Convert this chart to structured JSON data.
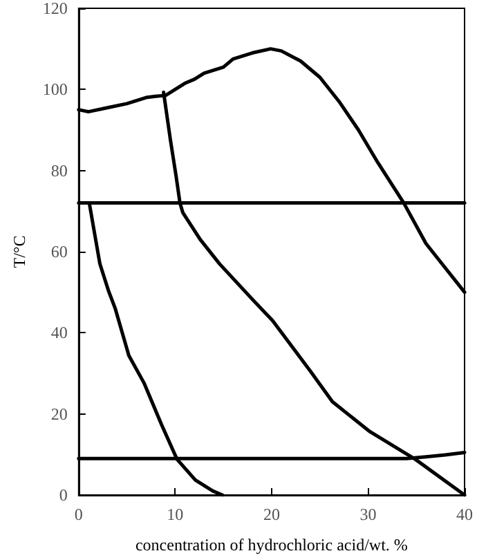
{
  "chart_data": {
    "type": "line",
    "xlabel": "concentration of hydrochloric acid/wt. %",
    "ylabel": "T/°C",
    "xlim": [
      0,
      40
    ],
    "xticks": [
      0,
      10,
      20,
      30,
      40
    ],
    "ylim": [
      0,
      120
    ],
    "yticks": [
      0,
      20,
      40,
      60,
      80,
      100,
      120
    ],
    "marker": "none",
    "line_style": "solid",
    "series": [
      {
        "color": "#000000",
        "x": [
          0,
          1,
          3,
          5,
          7,
          8,
          9,
          10,
          11,
          12,
          13,
          15,
          16,
          18,
          19.9,
          21,
          23,
          25,
          27,
          29,
          31,
          33.7,
          36,
          38,
          40
        ],
        "values": [
          95,
          94.5,
          95.5,
          96.5,
          98,
          98.3,
          98.5,
          100,
          101.5,
          102.5,
          104,
          105.5,
          107.5,
          109,
          110,
          109.5,
          107,
          103,
          97,
          90,
          82,
          72,
          62,
          56,
          50
        ]
      },
      {
        "color": "#000000",
        "x": [
          8.8,
          9.5,
          10.1,
          10.5,
          10.8,
          12.6,
          14.6,
          18.1,
          20.1,
          24,
          26.3,
          30.2,
          34.9,
          40
        ],
        "values": [
          99.3,
          87.7,
          78.6,
          72,
          69.6,
          63,
          57,
          48,
          43,
          30.6,
          23,
          15.6,
          8.8,
          0
        ]
      },
      {
        "color": "#000000",
        "x": [
          1.1,
          2.2,
          3.1,
          3.8,
          5.2,
          6.8,
          8.6,
          10.2,
          12.1,
          13.9,
          14.9
        ],
        "values": [
          72,
          57,
          50.3,
          45.9,
          34.4,
          27.5,
          17.3,
          8.8,
          3.7,
          1,
          0
        ]
      },
      {
        "color": "#000000",
        "x": [
          0,
          40
        ],
        "values": [
          72,
          72
        ]
      },
      {
        "color": "#000000",
        "x": [
          0,
          30,
          34,
          36,
          38,
          40
        ],
        "values": [
          9,
          9,
          9,
          9.4,
          9.9,
          10.5
        ]
      }
    ]
  }
}
